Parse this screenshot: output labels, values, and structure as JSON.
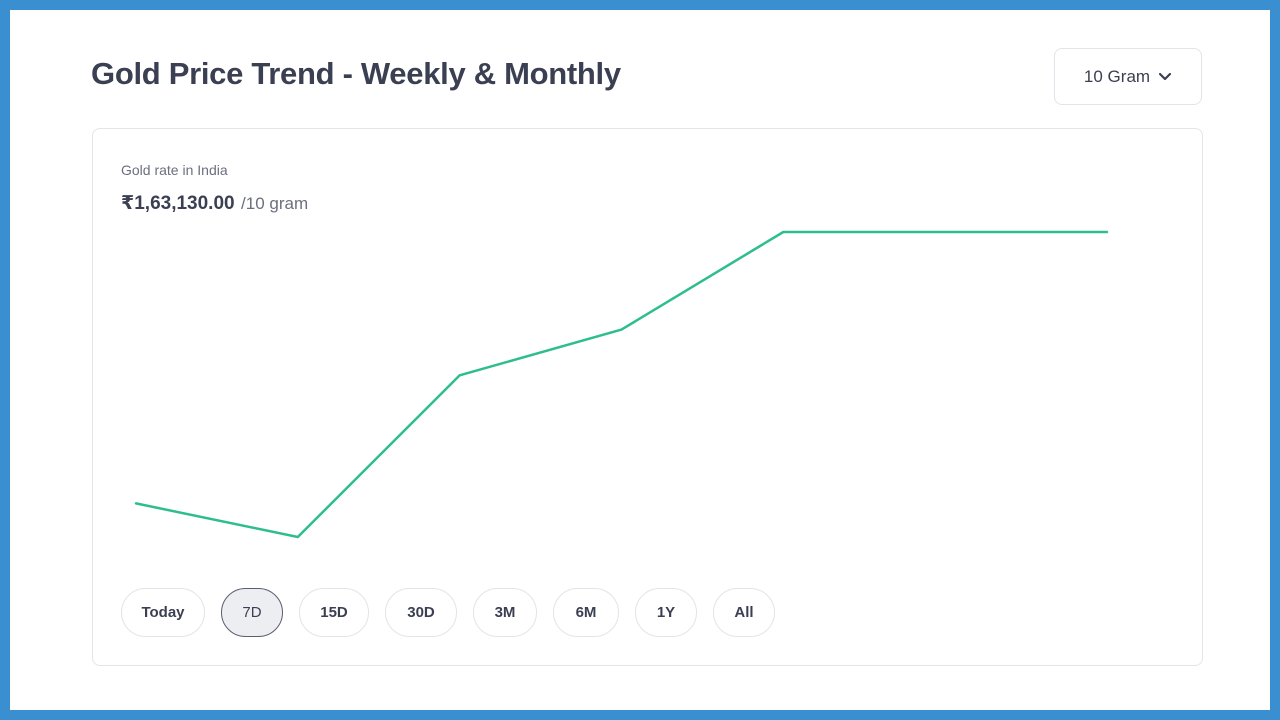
{
  "header": {
    "title": "Gold Price Trend - Weekly & Monthly",
    "unit_select": {
      "value": "10 Gram",
      "icon": "chevron-down-icon"
    }
  },
  "card": {
    "label": "Gold rate in India",
    "price": "₹1,63,130.00",
    "price_unit": "/10 gram"
  },
  "ranges": [
    {
      "label": "Today",
      "active": false
    },
    {
      "label": "7D",
      "active": true
    },
    {
      "label": "15D",
      "active": false
    },
    {
      "label": "30D",
      "active": false
    },
    {
      "label": "3M",
      "active": false
    },
    {
      "label": "6M",
      "active": false
    },
    {
      "label": "1Y",
      "active": false
    },
    {
      "label": "All",
      "active": false
    }
  ],
  "colors": {
    "line": "#2ebd8f",
    "accent_border": "#5a5e6e"
  },
  "chart_data": {
    "type": "line",
    "x": [
      1,
      2,
      3,
      4,
      5,
      6,
      7
    ],
    "values": [
      0.11,
      0.0,
      0.53,
      0.68,
      1.0,
      1.0,
      1.0
    ],
    "xlabel": "",
    "ylabel": "",
    "grid": false,
    "legend": "none"
  }
}
